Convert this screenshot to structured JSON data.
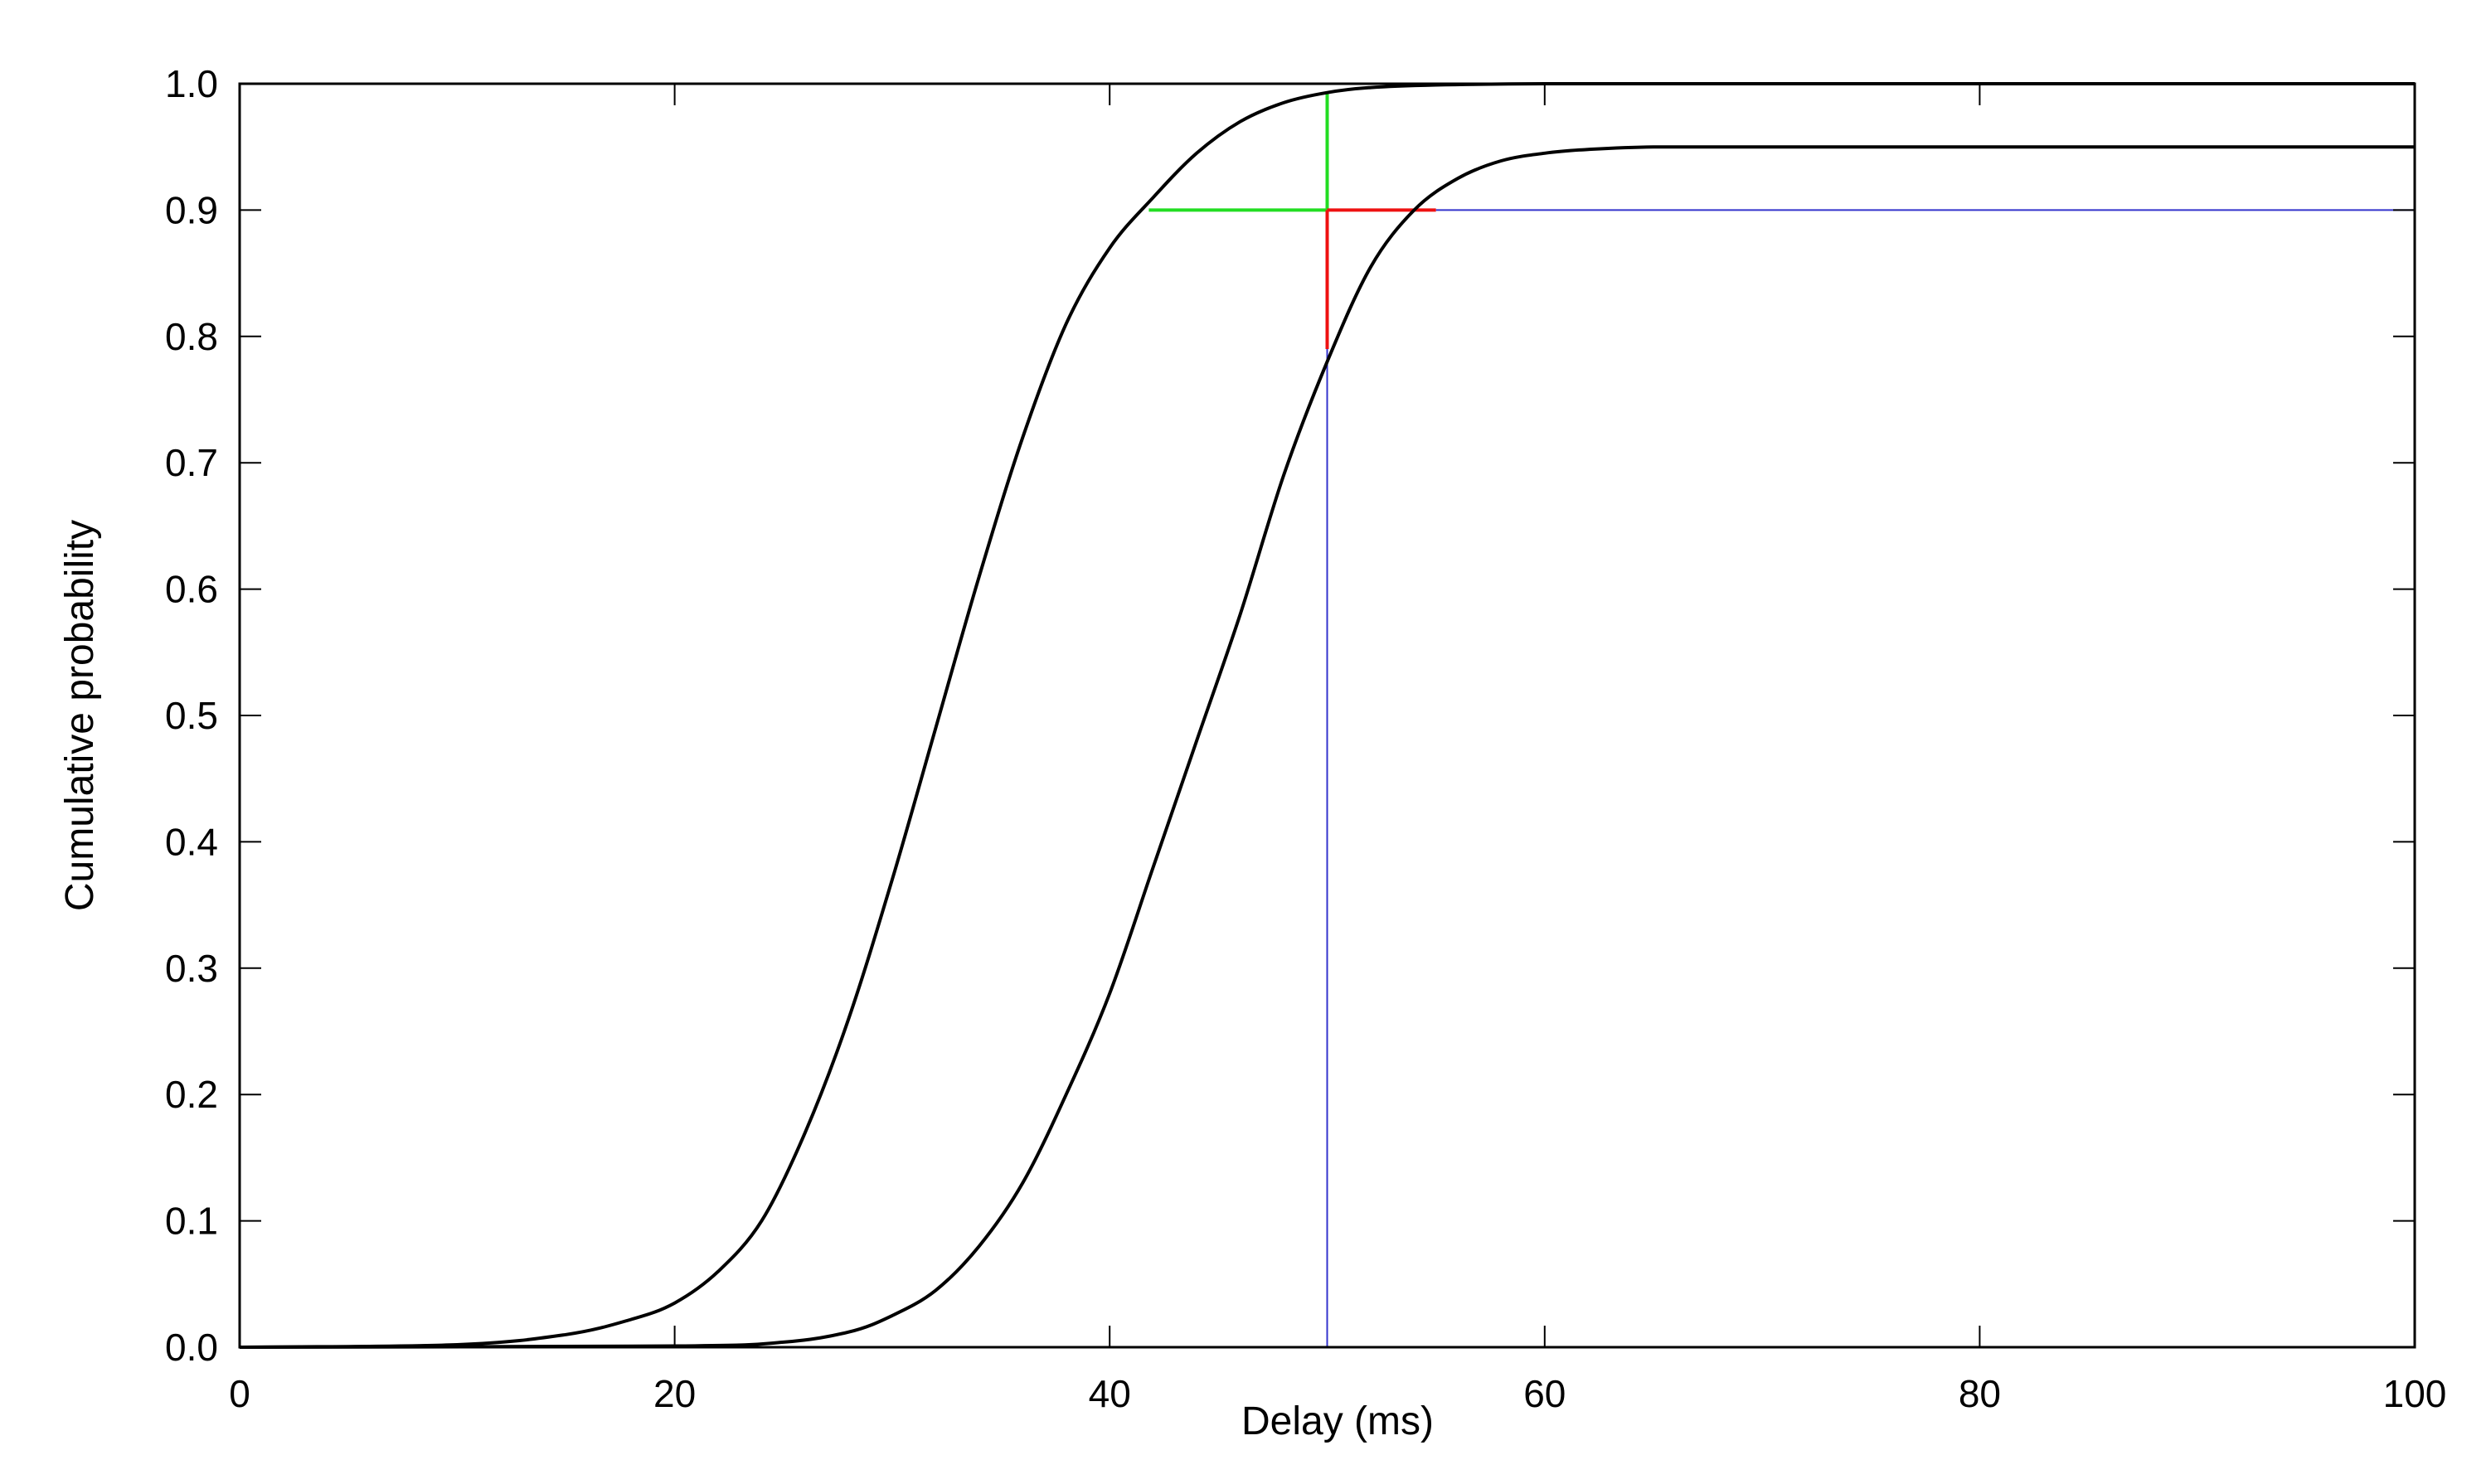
{
  "chart_data": {
    "type": "line",
    "title": "",
    "xlabel": "Delay (ms)",
    "ylabel": "Cumulative probability",
    "xlim": [
      0,
      100
    ],
    "ylim": [
      0,
      1
    ],
    "x_ticks": [
      0,
      20,
      40,
      60,
      80,
      100
    ],
    "x_tick_labels": [
      "0",
      "20",
      "40",
      "60",
      "80",
      "100"
    ],
    "y_ticks": [
      0,
      0.1,
      0.2,
      0.3,
      0.4,
      0.5,
      0.6,
      0.7,
      0.8,
      0.9,
      1.0
    ],
    "y_tick_labels": [
      "0.0",
      "0.1",
      "0.2",
      "0.3",
      "0.4",
      "0.5",
      "0.6",
      "0.7",
      "0.8",
      "0.9",
      "1.0"
    ],
    "grid": false,
    "legend": "none",
    "series": [
      {
        "color": "#000000",
        "x": [
          0,
          10,
          15,
          18,
          20,
          22,
          24,
          26,
          28,
          30,
          32,
          34,
          36,
          38,
          40,
          42,
          44,
          46,
          48,
          50,
          52,
          55,
          60,
          70,
          80,
          100
        ],
        "y": [
          0.0,
          0.002,
          0.01,
          0.022,
          0.035,
          0.06,
          0.1,
          0.17,
          0.26,
          0.37,
          0.49,
          0.61,
          0.72,
          0.81,
          0.87,
          0.91,
          0.945,
          0.97,
          0.985,
          0.993,
          0.997,
          0.999,
          1.0,
          1.0,
          1.0,
          1.0
        ]
      },
      {
        "color": "#000000",
        "x": [
          0,
          20,
          25,
          28,
          30,
          32,
          34,
          36,
          38,
          40,
          42,
          44,
          46,
          48,
          50,
          52,
          54,
          56,
          58,
          60,
          62,
          65,
          70,
          80,
          100
        ],
        "y": [
          0.0,
          0.001,
          0.004,
          0.012,
          0.025,
          0.045,
          0.08,
          0.13,
          0.2,
          0.28,
          0.38,
          0.48,
          0.58,
          0.69,
          0.78,
          0.855,
          0.9,
          0.925,
          0.939,
          0.945,
          0.948,
          0.95,
          0.95,
          0.95,
          0.95
        ]
      }
    ],
    "annotations": [
      {
        "kind": "vline",
        "x": 50,
        "y1": 0.0,
        "y2": 0.9,
        "color": "#3333cc"
      },
      {
        "kind": "hline",
        "y": 0.9,
        "x1": 55,
        "x2": 100,
        "color": "#3333cc"
      },
      {
        "kind": "vline",
        "x": 50,
        "y1": 0.9,
        "y2": 0.993,
        "color": "#22dd22"
      },
      {
        "kind": "hline",
        "y": 0.9,
        "x1": 41.8,
        "x2": 50,
        "color": "#22dd22"
      },
      {
        "kind": "vline",
        "x": 50,
        "y1": 0.79,
        "y2": 0.9,
        "color": "#ee1111"
      },
      {
        "kind": "hline",
        "y": 0.9,
        "x1": 50,
        "x2": 55,
        "color": "#ee1111"
      }
    ]
  }
}
